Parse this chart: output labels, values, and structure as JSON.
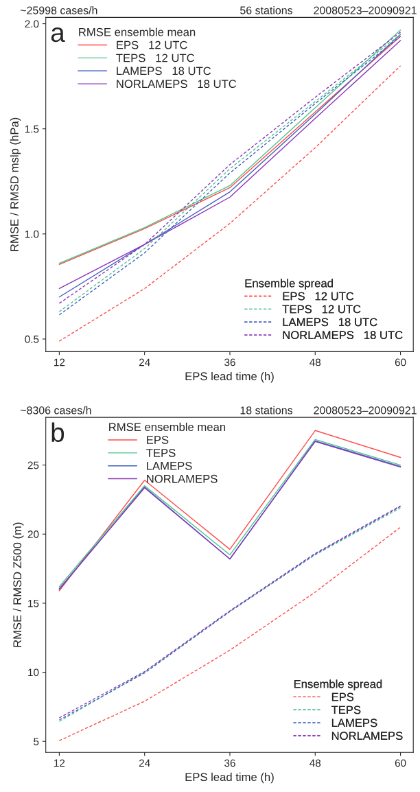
{
  "chart_data": [
    {
      "type": "line",
      "title": "a",
      "xlabel": "EPS lead time (h)",
      "ylabel": "RMSE / RMSD mslp (hPa)",
      "annotations": [
        "~25998 cases/h",
        "56 stations",
        "20080523–20090921"
      ],
      "x": [
        12,
        24,
        36,
        48,
        60
      ],
      "xlim": [
        10.1,
        61.8
      ],
      "xticks": [
        12,
        24,
        36,
        48,
        60
      ],
      "ylim": [
        0.44,
        2.03
      ],
      "yticks": [
        0.5,
        {
          "value": 1.0,
          "label": "1.0"
        },
        1.5,
        {
          "value": 2.0,
          "label": "2.0"
        }
      ],
      "grid": false,
      "legend": [
        "top left",
        "bottom right"
      ],
      "legend_title": [
        "RMSE ensemble mean",
        "Ensemble spread"
      ],
      "series": [
        {
          "name": "EPS   12 UTC",
          "color": "#ff4a4a",
          "line_style": "solid",
          "values": [
            0.855,
            1.025,
            1.22,
            1.58,
            1.94
          ]
        },
        {
          "name": "TEPS   12 UTC",
          "color": "#4cc48c",
          "line_style": "solid",
          "values": [
            0.86,
            1.03,
            1.23,
            1.6,
            1.97
          ]
        },
        {
          "name": "LAMEPS   18 UTC",
          "color": "#4060c0",
          "line_style": "solid",
          "values": [
            0.7,
            0.95,
            1.2,
            1.57,
            1.95
          ]
        },
        {
          "name": "NORLAMEPS   18 UTC",
          "color": "#8a35b8",
          "line_style": "solid",
          "values": [
            0.74,
            0.95,
            1.175,
            1.55,
            1.92
          ]
        },
        {
          "name": "EPS   12 UTC",
          "color": "#ff4a4a",
          "line_style": "dashed",
          "values": [
            0.49,
            0.74,
            1.05,
            1.41,
            1.8
          ]
        },
        {
          "name": "TEPS   12 UTC",
          "color": "#4cc48c",
          "line_style": "dashed",
          "values": [
            0.63,
            0.93,
            1.31,
            1.63,
            1.95
          ]
        },
        {
          "name": "LAMEPS   18 UTC",
          "color": "#4060c0",
          "line_style": "dashed",
          "values": [
            0.615,
            0.91,
            1.29,
            1.62,
            1.94
          ]
        },
        {
          "name": "NORLAMEPS   18 UTC",
          "color": "#8a35b8",
          "line_style": "dashed",
          "values": [
            0.67,
            0.95,
            1.33,
            1.65,
            1.96
          ]
        }
      ]
    },
    {
      "type": "line",
      "title": "b",
      "xlabel": "EPS lead time (h)",
      "ylabel": "RMSE / RMSD Z500 (m)",
      "annotations": [
        "~8306 cases/h",
        "18 stations",
        "20080523–20090921"
      ],
      "x": [
        12,
        24,
        36,
        48,
        60
      ],
      "xlim": [
        10.1,
        61.8
      ],
      "xticks": [
        12,
        24,
        36,
        48,
        60
      ],
      "ylim": [
        4.2,
        28.45
      ],
      "yticks": [
        5,
        10,
        15,
        20,
        25
      ],
      "grid": false,
      "legend": [
        "upper center",
        "bottom right"
      ],
      "legend_title": [
        "RMSE ensemble mean",
        "Ensemble spread"
      ],
      "series": [
        {
          "name": "EPS",
          "color": "#ff4a4a",
          "line_style": "solid",
          "values": [
            15.9,
            23.9,
            18.9,
            27.5,
            25.55
          ]
        },
        {
          "name": "TEPS",
          "color": "#4cc48c",
          "line_style": "solid",
          "values": [
            16.2,
            23.5,
            18.5,
            26.85,
            25.0
          ]
        },
        {
          "name": "LAMEPS",
          "color": "#4060c0",
          "line_style": "solid",
          "values": [
            16.0,
            23.4,
            18.2,
            26.75,
            24.9
          ]
        },
        {
          "name": "NORLAMEPS",
          "color": "#8a35b8",
          "line_style": "solid",
          "values": [
            16.05,
            23.35,
            18.2,
            26.7,
            24.85
          ]
        },
        {
          "name": "EPS",
          "color": "#ff4a4a",
          "line_style": "dashed",
          "values": [
            5.05,
            7.9,
            11.6,
            15.8,
            20.5
          ]
        },
        {
          "name": "TEPS",
          "color": "#4cc48c",
          "line_style": "dashed",
          "values": [
            6.45,
            10.0,
            14.4,
            18.5,
            21.9
          ]
        },
        {
          "name": "LAMEPS",
          "color": "#4060c0",
          "line_style": "dashed",
          "values": [
            6.55,
            9.95,
            14.4,
            18.55,
            22.0
          ]
        },
        {
          "name": "NORLAMEPS",
          "color": "#8a35b8",
          "line_style": "dashed",
          "values": [
            6.7,
            10.05,
            14.45,
            18.6,
            22.05
          ]
        }
      ]
    }
  ]
}
